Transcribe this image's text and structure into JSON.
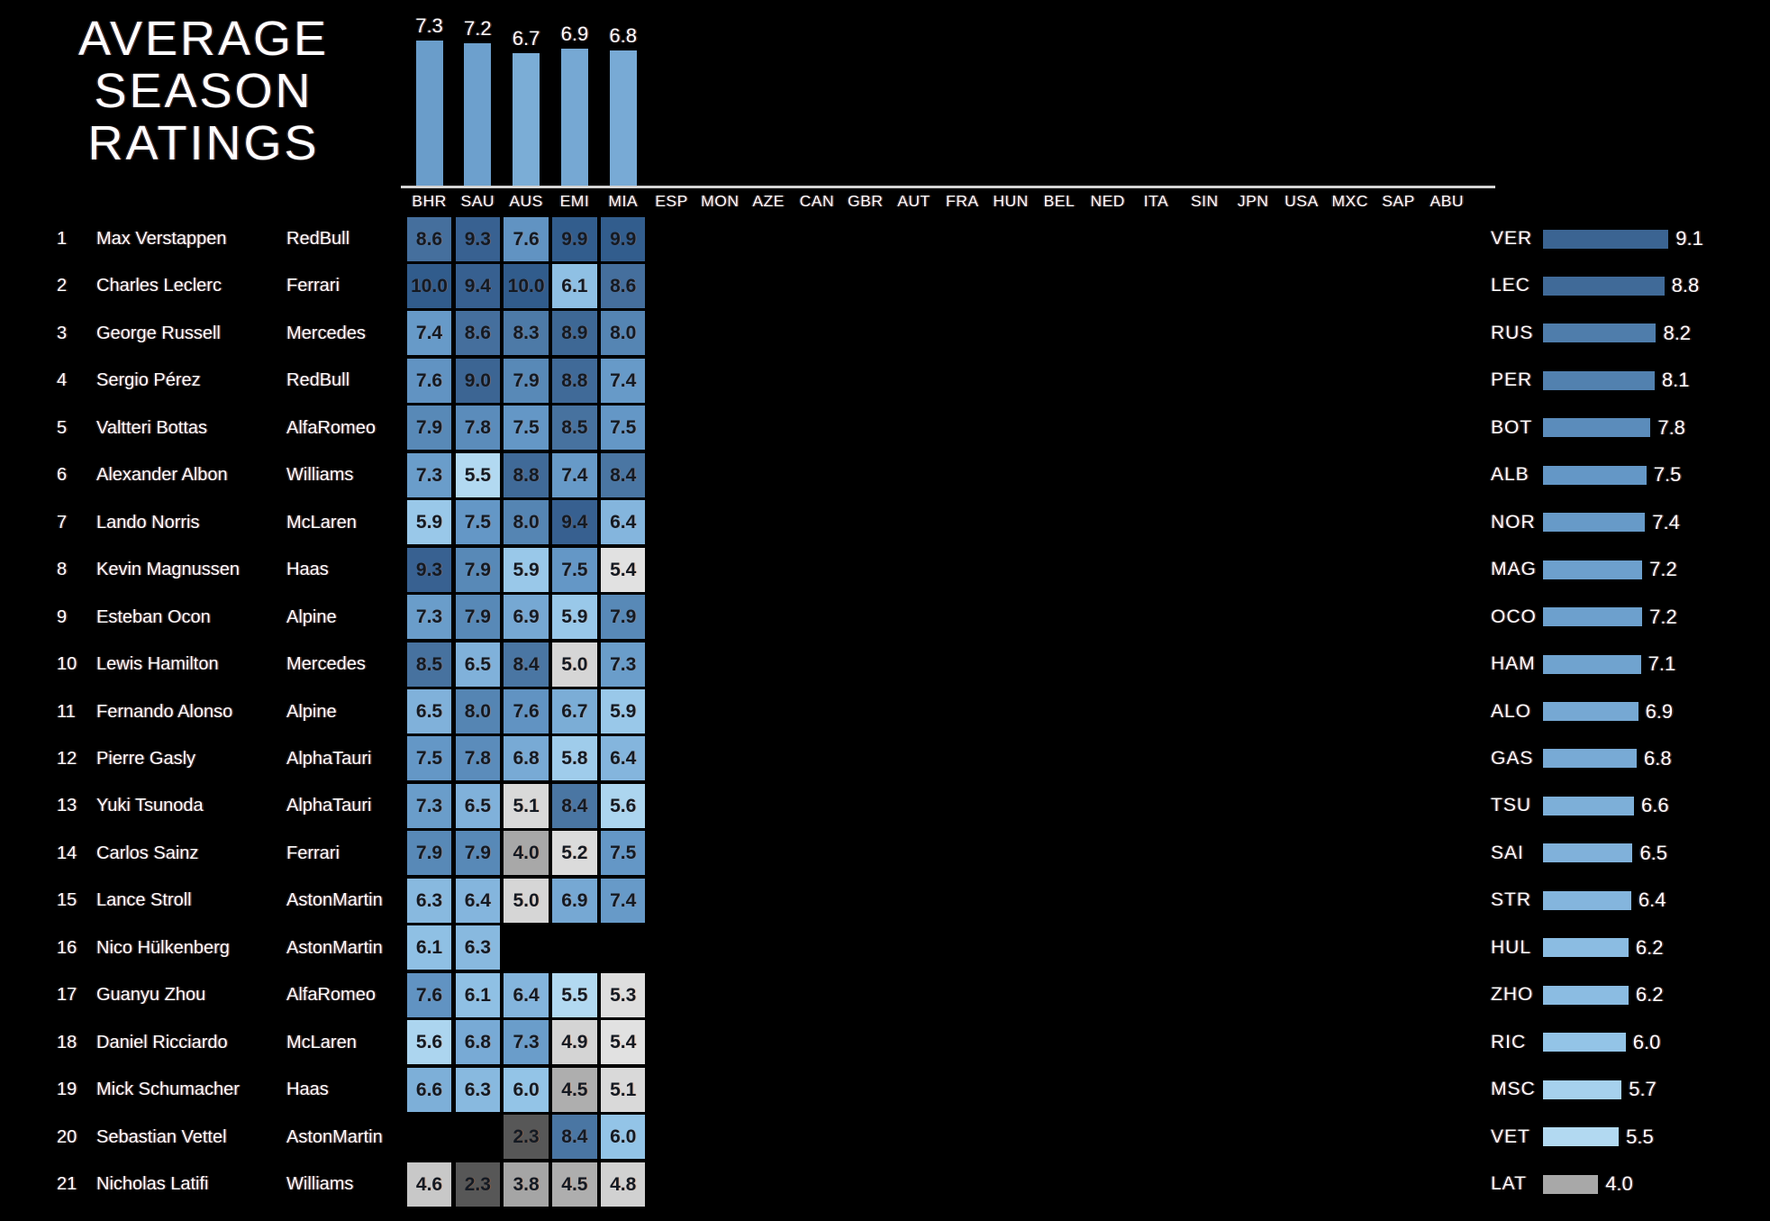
{
  "title": [
    "AVERAGE",
    "SEASON",
    "RATINGS"
  ],
  "colors": {
    "background": "#000000",
    "text": "#ffffff",
    "cell_text": "#141a23",
    "separator": "#d4d4d4",
    "colormap_stops": [
      [
        2.0,
        "#4e4e4e"
      ],
      [
        2.3,
        "#575757"
      ],
      [
        3.0,
        "#7d7d7d"
      ],
      [
        3.8,
        "#a5a5a5"
      ],
      [
        4.5,
        "#aeaeae"
      ],
      [
        4.62,
        "#cdcdcd"
      ],
      [
        5.0,
        "#d6d6d6"
      ],
      [
        5.45,
        "#e2e2e2"
      ],
      [
        5.5,
        "#b2d9f1"
      ],
      [
        6.0,
        "#93c4e7"
      ],
      [
        6.5,
        "#80b1da"
      ],
      [
        7.0,
        "#73a6d1"
      ],
      [
        7.5,
        "#6497c6"
      ],
      [
        8.0,
        "#5585b3"
      ],
      [
        8.5,
        "#47729f"
      ],
      [
        9.0,
        "#3c6593"
      ],
      [
        9.5,
        "#365f8f"
      ],
      [
        10.0,
        "#315c8c"
      ]
    ]
  },
  "chart_data": [
    {
      "type": "bar",
      "id": "race-averages",
      "categories": [
        "BHR",
        "SAU",
        "AUS",
        "EMI",
        "MIA"
      ],
      "values": [
        7.3,
        7.2,
        6.7,
        6.9,
        6.8
      ],
      "ylim": [
        0,
        10
      ],
      "legend": "none",
      "note": "vertical bars above race header row, colored by value colormap"
    },
    {
      "type": "heatmap",
      "id": "driver-race-ratings",
      "columns": [
        "BHR",
        "SAU",
        "AUS",
        "EMI",
        "MIA",
        "ESP",
        "MON",
        "AZE",
        "CAN",
        "GBR",
        "AUT",
        "FRA",
        "HUN",
        "BEL",
        "NED",
        "ITA",
        "SIN",
        "JPN",
        "USA",
        "MXC",
        "SAP",
        "ABU"
      ],
      "vlim": [
        0,
        10
      ],
      "rows": [
        {
          "rank": 1,
          "name": "Max Verstappen",
          "team": "RedBull",
          "code": "VER",
          "values": [
            8.6,
            9.3,
            7.6,
            9.9,
            9.9
          ]
        },
        {
          "rank": 2,
          "name": "Charles Leclerc",
          "team": "Ferrari",
          "code": "LEC",
          "values": [
            10.0,
            9.4,
            10.0,
            6.1,
            8.6
          ]
        },
        {
          "rank": 3,
          "name": "George Russell",
          "team": "Mercedes",
          "code": "RUS",
          "values": [
            7.4,
            8.6,
            8.3,
            8.9,
            8.0
          ]
        },
        {
          "rank": 4,
          "name": "Sergio Pérez",
          "team": "RedBull",
          "code": "PER",
          "values": [
            7.6,
            9.0,
            7.9,
            8.8,
            7.4
          ]
        },
        {
          "rank": 5,
          "name": "Valtteri Bottas",
          "team": "AlfaRomeo",
          "code": "BOT",
          "values": [
            7.9,
            7.8,
            7.5,
            8.5,
            7.5
          ]
        },
        {
          "rank": 6,
          "name": "Alexander Albon",
          "team": "Williams",
          "code": "ALB",
          "values": [
            7.3,
            5.5,
            8.8,
            7.4,
            8.4
          ]
        },
        {
          "rank": 7,
          "name": "Lando Norris",
          "team": "McLaren",
          "code": "NOR",
          "values": [
            5.9,
            7.5,
            8.0,
            9.4,
            6.4
          ]
        },
        {
          "rank": 8,
          "name": "Kevin Magnussen",
          "team": "Haas",
          "code": "MAG",
          "values": [
            9.3,
            7.9,
            5.9,
            7.5,
            5.4
          ]
        },
        {
          "rank": 9,
          "name": "Esteban Ocon",
          "team": "Alpine",
          "code": "OCO",
          "values": [
            7.3,
            7.9,
            6.9,
            5.9,
            7.9
          ]
        },
        {
          "rank": 10,
          "name": "Lewis Hamilton",
          "team": "Mercedes",
          "code": "HAM",
          "values": [
            8.5,
            6.5,
            8.4,
            5.0,
            7.3
          ]
        },
        {
          "rank": 11,
          "name": "Fernando Alonso",
          "team": "Alpine",
          "code": "ALO",
          "values": [
            6.5,
            8.0,
            7.6,
            6.7,
            5.9
          ]
        },
        {
          "rank": 12,
          "name": "Pierre Gasly",
          "team": "AlphaTauri",
          "code": "GAS",
          "values": [
            7.5,
            7.8,
            6.8,
            5.8,
            6.4
          ]
        },
        {
          "rank": 13,
          "name": "Yuki Tsunoda",
          "team": "AlphaTauri",
          "code": "TSU",
          "values": [
            7.3,
            6.5,
            5.1,
            8.4,
            5.6
          ]
        },
        {
          "rank": 14,
          "name": "Carlos Sainz",
          "team": "Ferrari",
          "code": "SAI",
          "values": [
            7.9,
            7.9,
            4.0,
            5.2,
            7.5
          ]
        },
        {
          "rank": 15,
          "name": "Lance Stroll",
          "team": "AstonMartin",
          "code": "STR",
          "values": [
            6.3,
            6.4,
            5.0,
            6.9,
            7.4
          ]
        },
        {
          "rank": 16,
          "name": "Nico Hülkenberg",
          "team": "AstonMartin",
          "code": "HUL",
          "values": [
            6.1,
            6.3,
            null,
            null,
            null
          ]
        },
        {
          "rank": 17,
          "name": "Guanyu Zhou",
          "team": "AlfaRomeo",
          "code": "ZHO",
          "values": [
            7.6,
            6.1,
            6.4,
            5.5,
            5.3
          ]
        },
        {
          "rank": 18,
          "name": "Daniel Ricciardo",
          "team": "McLaren",
          "code": "RIC",
          "values": [
            5.6,
            6.8,
            7.3,
            4.9,
            5.4
          ]
        },
        {
          "rank": 19,
          "name": "Mick Schumacher",
          "team": "Haas",
          "code": "MSC",
          "values": [
            6.6,
            6.3,
            6.0,
            4.5,
            5.1
          ]
        },
        {
          "rank": 20,
          "name": "Sebastian Vettel",
          "team": "AstonMartin",
          "code": "VET",
          "values": [
            null,
            null,
            2.3,
            8.4,
            6.0
          ]
        },
        {
          "rank": 21,
          "name": "Nicholas Latifi",
          "team": "Williams",
          "code": "LAT",
          "values": [
            4.6,
            2.3,
            3.8,
            4.5,
            4.8
          ]
        }
      ]
    },
    {
      "type": "bar",
      "id": "driver-averages",
      "orientation": "horizontal",
      "categories": [
        "VER",
        "LEC",
        "RUS",
        "PER",
        "BOT",
        "ALB",
        "NOR",
        "MAG",
        "OCO",
        "HAM",
        "ALO",
        "GAS",
        "TSU",
        "SAI",
        "STR",
        "HUL",
        "ZHO",
        "RIC",
        "MSC",
        "VET",
        "LAT"
      ],
      "values": [
        9.1,
        8.8,
        8.2,
        8.1,
        7.8,
        7.5,
        7.4,
        7.2,
        7.2,
        7.1,
        6.9,
        6.8,
        6.6,
        6.5,
        6.4,
        6.2,
        6.2,
        6.0,
        5.7,
        5.5,
        4.0
      ],
      "xlim": [
        0,
        10
      ],
      "note": "horizontal bars with driver code left and average value right, colored by value colormap"
    }
  ]
}
